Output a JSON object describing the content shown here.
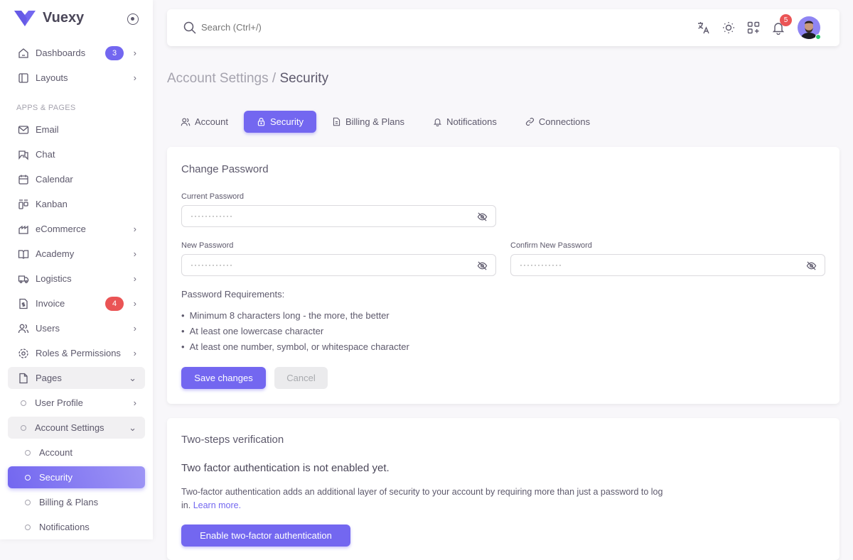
{
  "brand": {
    "name": "Vuexy",
    "color": "#7367f0"
  },
  "sidebar": {
    "section_label": "APPS & PAGES",
    "items": [
      {
        "label": "Dashboards",
        "icon": "home-icon",
        "badge": "3",
        "badge_color": "#7367f0"
      },
      {
        "label": "Layouts",
        "icon": "layout-icon"
      },
      {
        "label": "Email",
        "icon": "mail-icon"
      },
      {
        "label": "Chat",
        "icon": "chat-icon"
      },
      {
        "label": "Calendar",
        "icon": "calendar-icon"
      },
      {
        "label": "Kanban",
        "icon": "kanban-icon"
      },
      {
        "label": "eCommerce",
        "icon": "shop-icon"
      },
      {
        "label": "Academy",
        "icon": "book-icon"
      },
      {
        "label": "Logistics",
        "icon": "truck-icon"
      },
      {
        "label": "Invoice",
        "icon": "invoice-icon",
        "badge": "4",
        "badge_color": "#ea5455"
      },
      {
        "label": "Users",
        "icon": "users-icon"
      },
      {
        "label": "Roles & Permissions",
        "icon": "settings-icon"
      },
      {
        "label": "Pages",
        "icon": "file-icon"
      },
      {
        "label": "User Profile"
      },
      {
        "label": "Account Settings"
      },
      {
        "label": "Account"
      },
      {
        "label": "Security"
      },
      {
        "label": "Billing & Plans"
      },
      {
        "label": "Notifications"
      }
    ]
  },
  "topbar": {
    "search_placeholder": "Search (Ctrl+/)",
    "notification_count": "5"
  },
  "breadcrumb": {
    "parent": "Account Settings /",
    "current": "Security"
  },
  "tabs": [
    {
      "label": "Account"
    },
    {
      "label": "Security"
    },
    {
      "label": "Billing & Plans"
    },
    {
      "label": "Notifications"
    },
    {
      "label": "Connections"
    }
  ],
  "change_password": {
    "title": "Change Password",
    "current_label": "Current Password",
    "new_label": "New Password",
    "confirm_label": "Confirm New Password",
    "placeholder": "············",
    "requirements_title": "Password Requirements:",
    "requirements": [
      "Minimum 8 characters long - the more, the better",
      "At least one lowercase character",
      "At least one number, symbol, or whitespace character"
    ],
    "save": "Save changes",
    "cancel": "Cancel"
  },
  "two_step": {
    "title": "Two-steps verification",
    "heading": "Two factor authentication is not enabled yet.",
    "description": "Two-factor authentication adds an additional layer of security to your account by requiring more than just a password to log in.",
    "link": "Learn more.",
    "button": "Enable two-factor authentication"
  }
}
